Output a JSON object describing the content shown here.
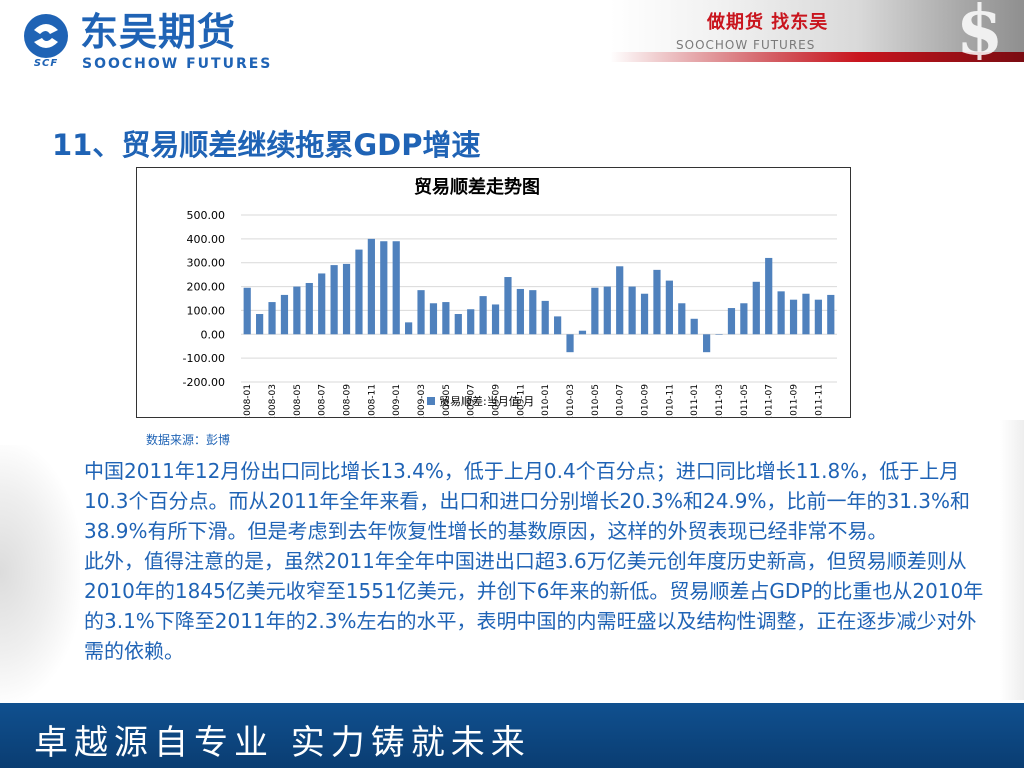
{
  "header": {
    "logo_cn": "东吴期货",
    "logo_en": "SOOCHOW FUTURES",
    "logo_abbr": "SCF",
    "banner_cn": "做期货 找东吴",
    "banner_en": "SOOCHOW FUTURES"
  },
  "title": "11、贸易顺差继续拖累GDP增速",
  "chart_data": {
    "type": "bar",
    "title": "贸易顺差走势图",
    "xlabel": "",
    "ylabel": "",
    "ylim": [
      -200,
      500
    ],
    "yticks": [
      "500.00",
      "400.00",
      "300.00",
      "200.00",
      "100.00",
      "0.00",
      "-100.00",
      "-200.00"
    ],
    "grid": true,
    "legend_position": "bottom-center",
    "color": "#4f81bd",
    "tick_labels": [
      "2008-01",
      "2008-03",
      "2008-05",
      "2008-07",
      "2008-09",
      "2008-11",
      "2009-01",
      "2009-03",
      "2009-05",
      "2009-07",
      "2009-09",
      "2009-11",
      "2010-01",
      "2010-03",
      "2010-05",
      "2010-07",
      "2010-09",
      "2010-11",
      "2011-01",
      "2011-03",
      "2011-05",
      "2011-07",
      "2011-09",
      "2011-11"
    ],
    "categories": [
      "2008-01",
      "2008-02",
      "2008-03",
      "2008-04",
      "2008-05",
      "2008-06",
      "2008-07",
      "2008-08",
      "2008-09",
      "2008-10",
      "2008-11",
      "2008-12",
      "2009-01",
      "2009-02",
      "2009-03",
      "2009-04",
      "2009-05",
      "2009-06",
      "2009-07",
      "2009-08",
      "2009-09",
      "2009-10",
      "2009-11",
      "2009-12",
      "2010-01",
      "2010-02",
      "2010-03",
      "2010-04",
      "2010-05",
      "2010-06",
      "2010-07",
      "2010-08",
      "2010-09",
      "2010-10",
      "2010-11",
      "2010-12",
      "2011-01",
      "2011-02",
      "2011-03",
      "2011-04",
      "2011-05",
      "2011-06",
      "2011-07",
      "2011-08",
      "2011-09",
      "2011-10",
      "2011-11",
      "2011-12"
    ],
    "series": [
      {
        "name": "贸易顺差:当月值 月",
        "values": [
          195,
          85,
          135,
          165,
          200,
          215,
          255,
          290,
          295,
          355,
          400,
          390,
          390,
          50,
          185,
          130,
          135,
          85,
          105,
          160,
          125,
          240,
          190,
          185,
          140,
          75,
          -75,
          15,
          195,
          200,
          285,
          200,
          170,
          270,
          225,
          130,
          65,
          -75,
          0,
          110,
          130,
          220,
          320,
          180,
          145,
          170,
          145,
          165
        ]
      }
    ]
  },
  "source": "数据来源：彭博",
  "body": {
    "p1": "中国2011年12月份出口同比增长13.4%，低于上月0.4个百分点；进口同比增长11.8%，低于上月10.3个百分点。而从2011年全年来看，出口和进口分别增长20.3%和24.9%，比前一年的31.3%和38.9%有所下滑。但是考虑到去年恢复性增长的基数原因，这样的外贸表现已经非常不易。",
    "p2": "此外，值得注意的是，虽然2011年全年中国进出口超3.6万亿美元创年度历史新高，但贸易顺差则从2010年的1845亿美元收窄至1551亿美元，并创下6年来的新低。贸易顺差占GDP的比重也从2010年的3.1%下降至2011年的2.3%左右的水平，表明中国的内需旺盛以及结构性调整，正在逐步减少对外需的依赖。"
  },
  "footer": {
    "slogan": "卓越源自专业  实力铸就未来"
  },
  "colors": {
    "brand_blue": "#1f63b5",
    "brand_red": "#c9151e",
    "footer_bg": "#0a3d72"
  }
}
